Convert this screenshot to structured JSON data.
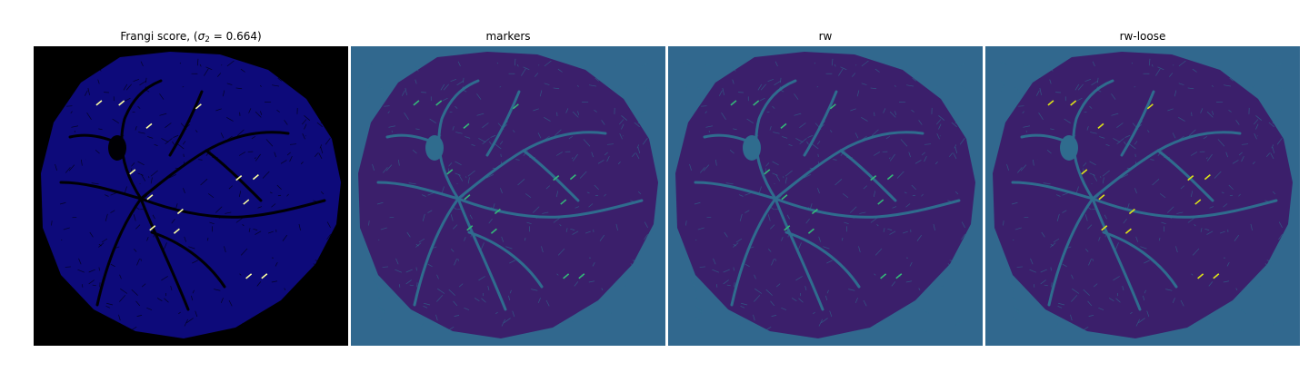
{
  "figure": {
    "panels": [
      {
        "id": "frangi",
        "title_prefix": "Frangi score, (",
        "title_sigma": "σ",
        "title_sub": "2",
        "title_suffix": " = 0.664)",
        "background": "#000000",
        "fill": "#0d0a7a",
        "vessel": "#000004",
        "highlight": "#fcffa4"
      },
      {
        "id": "markers",
        "title": "markers",
        "background": "#31688e",
        "fill": "#3b1f6b",
        "vessel": "#2f6c8e",
        "highlight": "#35b779"
      },
      {
        "id": "rw",
        "title": "rw",
        "background": "#31688e",
        "fill": "#3b1f6b",
        "vessel": "#2f6c8e",
        "highlight": "#35b779"
      },
      {
        "id": "rw-loose",
        "title": "rw-loose",
        "background": "#31688e",
        "fill": "#3b1f6b",
        "vessel": "#2f6c8e",
        "highlight": "#dde318"
      }
    ]
  }
}
